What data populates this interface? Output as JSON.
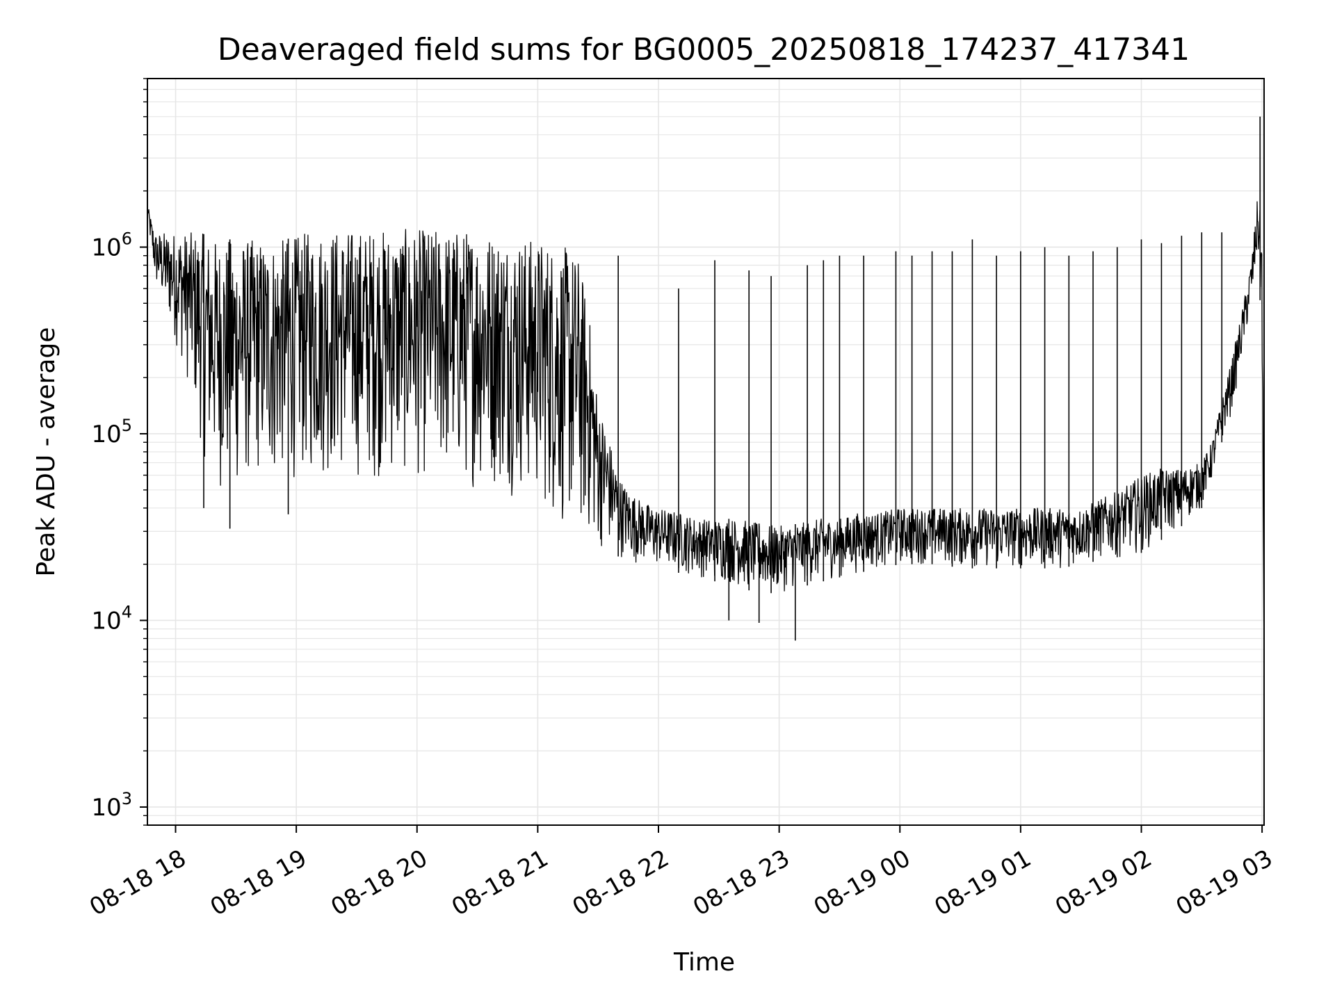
{
  "chart_data": {
    "type": "line",
    "title": "Deaveraged field sums for BG0005_20250818_174237_417341",
    "xlabel": "Time",
    "ylabel": "Peak ADU - average",
    "y_scale": "log",
    "ylim": [
      800,
      8000000
    ],
    "xlim": [
      "2025-08-18 17:46",
      "2025-08-19 03:01"
    ],
    "grid": true,
    "legend": "none",
    "line_color": "#000000",
    "grid_color": "#e6e6e6",
    "x_ticks": [
      {
        "value": "2025-08-18 18:00",
        "label": "08-18 18"
      },
      {
        "value": "2025-08-18 19:00",
        "label": "08-18 19"
      },
      {
        "value": "2025-08-18 20:00",
        "label": "08-18 20"
      },
      {
        "value": "2025-08-18 21:00",
        "label": "08-18 21"
      },
      {
        "value": "2025-08-18 22:00",
        "label": "08-18 22"
      },
      {
        "value": "2025-08-18 23:00",
        "label": "08-18 23"
      },
      {
        "value": "2025-08-19 00:00",
        "label": "08-19 00"
      },
      {
        "value": "2025-08-19 01:00",
        "label": "08-19 01"
      },
      {
        "value": "2025-08-19 02:00",
        "label": "08-19 02"
      },
      {
        "value": "2025-08-19 03:00",
        "label": "08-19 03"
      }
    ],
    "y_ticks": [
      {
        "value": 1000,
        "base": "10",
        "exp": "3"
      },
      {
        "value": 10000,
        "base": "10",
        "exp": "4"
      },
      {
        "value": 100000,
        "base": "10",
        "exp": "5"
      },
      {
        "value": 1000000,
        "base": "10",
        "exp": "6"
      }
    ],
    "series": [
      {
        "x": [
          "2025-08-18 17:46",
          "2025-08-18 17:48",
          "2025-08-18 17:50",
          "2025-08-18 17:53",
          "2025-08-18 17:56",
          "2025-08-18 18:00",
          "2025-08-18 18:04",
          "2025-08-18 18:08",
          "2025-08-18 18:12",
          "2025-08-18 18:16",
          "2025-08-18 18:20",
          "2025-08-18 18:25",
          "2025-08-18 18:30",
          "2025-08-18 18:35",
          "2025-08-18 18:40",
          "2025-08-18 18:45",
          "2025-08-18 18:50",
          "2025-08-18 18:55",
          "2025-08-18 19:00",
          "2025-08-18 19:10",
          "2025-08-18 19:20",
          "2025-08-18 19:30",
          "2025-08-18 19:40",
          "2025-08-18 19:50",
          "2025-08-18 20:00",
          "2025-08-18 20:10",
          "2025-08-18 20:20",
          "2025-08-18 20:30",
          "2025-08-18 20:40",
          "2025-08-18 20:50",
          "2025-08-18 21:00",
          "2025-08-18 21:05",
          "2025-08-18 21:10",
          "2025-08-18 21:15",
          "2025-08-18 21:20",
          "2025-08-18 21:25",
          "2025-08-18 21:30",
          "2025-08-18 21:35",
          "2025-08-18 21:40",
          "2025-08-18 21:45",
          "2025-08-18 21:50",
          "2025-08-18 21:55",
          "2025-08-18 22:00",
          "2025-08-18 22:10",
          "2025-08-18 22:20",
          "2025-08-18 22:30",
          "2025-08-18 22:40",
          "2025-08-18 22:50",
          "2025-08-18 23:00",
          "2025-08-18 23:10",
          "2025-08-18 23:20",
          "2025-08-18 23:30",
          "2025-08-18 23:40",
          "2025-08-18 23:50",
          "2025-08-19 00:00",
          "2025-08-19 00:10",
          "2025-08-19 00:20",
          "2025-08-19 00:30",
          "2025-08-19 00:40",
          "2025-08-19 00:50",
          "2025-08-19 01:00",
          "2025-08-19 01:10",
          "2025-08-19 01:20",
          "2025-08-19 01:30",
          "2025-08-19 01:40",
          "2025-08-19 01:50",
          "2025-08-19 02:00",
          "2025-08-19 02:10",
          "2025-08-19 02:20",
          "2025-08-19 02:30",
          "2025-08-19 02:35",
          "2025-08-19 02:40",
          "2025-08-19 02:45",
          "2025-08-19 02:50",
          "2025-08-19 02:55",
          "2025-08-19 02:58",
          "2025-08-19 03:00",
          "2025-08-19 03:01"
        ],
        "low": [
          1500000,
          900000,
          600000,
          500000,
          400000,
          300000,
          220000,
          150000,
          90000,
          60000,
          50000,
          45000,
          45000,
          50000,
          55000,
          50000,
          50000,
          55000,
          55000,
          55000,
          55000,
          55000,
          55000,
          55000,
          55000,
          55000,
          50000,
          50000,
          48000,
          45000,
          40000,
          35000,
          30000,
          28000,
          26000,
          25000,
          24000,
          23000,
          22000,
          21000,
          20000,
          19000,
          19000,
          18000,
          17000,
          16000,
          15000,
          14000,
          14000,
          15000,
          16000,
          17000,
          18000,
          19000,
          20000,
          20000,
          20000,
          19000,
          19000,
          19000,
          19000,
          19000,
          19000,
          20000,
          21000,
          22000,
          23000,
          27000,
          32000,
          40000,
          55000,
          90000,
          130000,
          250000,
          500000,
          900000,
          300000,
          1000
        ],
        "high": [
          1700000,
          1400000,
          1200000,
          1200000,
          1200000,
          1200000,
          1200000,
          1200000,
          1200000,
          1150000,
          1100000,
          1100000,
          1100000,
          1100000,
          1100000,
          1100000,
          1100000,
          1100000,
          1150000,
          1250000,
          1250000,
          1250000,
          1250000,
          1250000,
          1250000,
          1250000,
          1250000,
          1250000,
          1200000,
          1150000,
          1100000,
          1100000,
          1000000,
          1000000,
          900000,
          500000,
          150000,
          100000,
          60000,
          50000,
          45000,
          42000,
          40000,
          38000,
          35000,
          35000,
          35000,
          33000,
          32000,
          33000,
          35000,
          35000,
          38000,
          38000,
          40000,
          40000,
          40000,
          40000,
          40000,
          40000,
          40000,
          40000,
          40000,
          40000,
          45000,
          50000,
          60000,
          65000,
          65000,
          70000,
          90000,
          150000,
          250000,
          450000,
          900000,
          2000000,
          1200000,
          6000
        ]
      }
    ],
    "spikes": [
      {
        "x": "2025-08-18 21:40",
        "y": 900000
      },
      {
        "x": "2025-08-18 22:10",
        "y": 600000
      },
      {
        "x": "2025-08-18 22:28",
        "y": 850000
      },
      {
        "x": "2025-08-18 22:45",
        "y": 750000
      },
      {
        "x": "2025-08-18 22:56",
        "y": 700000
      },
      {
        "x": "2025-08-18 23:14",
        "y": 800000
      },
      {
        "x": "2025-08-18 23:22",
        "y": 850000
      },
      {
        "x": "2025-08-18 23:30",
        "y": 900000
      },
      {
        "x": "2025-08-18 23:42",
        "y": 900000
      },
      {
        "x": "2025-08-18 23:58",
        "y": 950000
      },
      {
        "x": "2025-08-19 00:06",
        "y": 900000
      },
      {
        "x": "2025-08-19 00:16",
        "y": 950000
      },
      {
        "x": "2025-08-19 00:26",
        "y": 950000
      },
      {
        "x": "2025-08-19 00:36",
        "y": 1100000
      },
      {
        "x": "2025-08-19 00:48",
        "y": 900000
      },
      {
        "x": "2025-08-19 01:00",
        "y": 950000
      },
      {
        "x": "2025-08-19 01:12",
        "y": 1000000
      },
      {
        "x": "2025-08-19 01:24",
        "y": 900000
      },
      {
        "x": "2025-08-19 01:36",
        "y": 950000
      },
      {
        "x": "2025-08-19 01:48",
        "y": 1000000
      },
      {
        "x": "2025-08-19 02:00",
        "y": 1100000
      },
      {
        "x": "2025-08-19 02:10",
        "y": 1050000
      },
      {
        "x": "2025-08-19 02:20",
        "y": 1150000
      },
      {
        "x": "2025-08-19 02:30",
        "y": 1200000
      },
      {
        "x": "2025-08-19 02:40",
        "y": 1200000
      },
      {
        "x": "2025-08-19 02:59",
        "y": 5000000
      }
    ],
    "dips": [
      {
        "x": "2025-08-18 18:14",
        "y": 40000
      },
      {
        "x": "2025-08-18 18:27",
        "y": 31000
      },
      {
        "x": "2025-08-18 18:56",
        "y": 37000
      },
      {
        "x": "2025-08-18 22:50",
        "y": 9700
      },
      {
        "x": "2025-08-18 23:08",
        "y": 7800
      },
      {
        "x": "2025-08-18 22:35",
        "y": 10000
      }
    ]
  }
}
